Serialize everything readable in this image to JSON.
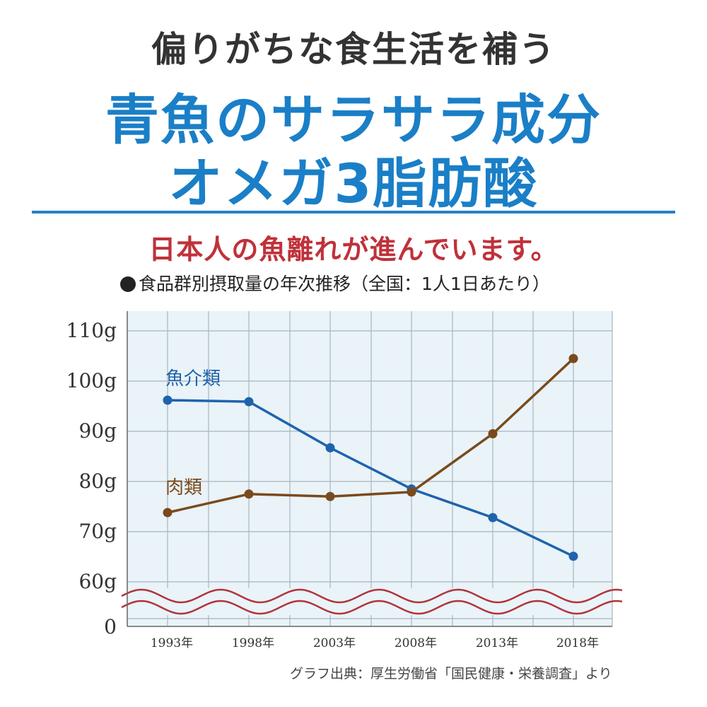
{
  "header": {
    "subtitle": "偏りがちな食生活を補う",
    "headline_line1": "青魚のサラサラ成分",
    "headline_line2": "オメガ3脂肪酸",
    "tagline": "日本人の魚離れが進んでいます。"
  },
  "colors": {
    "headline": "#1a7fc7",
    "tagline": "#c0313a",
    "rule": "#2a7fc4",
    "plot_bg": "#e9f3f8",
    "grid": "#a9b5bf",
    "fish": "#1f63ad",
    "meat": "#7a4a1c",
    "wave": "#b3333b"
  },
  "chart_data": {
    "type": "line",
    "title": "●食品群別摂取量の年次推移（全国：1人1日あたり）",
    "categories": [
      "1993年",
      "1998年",
      "2003年",
      "2008年",
      "2013年",
      "2018年"
    ],
    "series": [
      {
        "name": "魚介類",
        "values": [
          96.2,
          95.9,
          86.7,
          78.5,
          72.8,
          65.1
        ]
      },
      {
        "name": "肉類",
        "values": [
          73.8,
          77.5,
          77.0,
          77.9,
          89.5,
          104.5
        ]
      }
    ],
    "y_ticks": [
      "110g",
      "100g",
      "90g",
      "80g",
      "70g",
      "60g",
      "0"
    ],
    "ylim": [
      60,
      110
    ],
    "y_axis_break": true,
    "grid": true
  },
  "source": "グラフ出典：厚生労働省「国民健康・栄養調査」より"
}
